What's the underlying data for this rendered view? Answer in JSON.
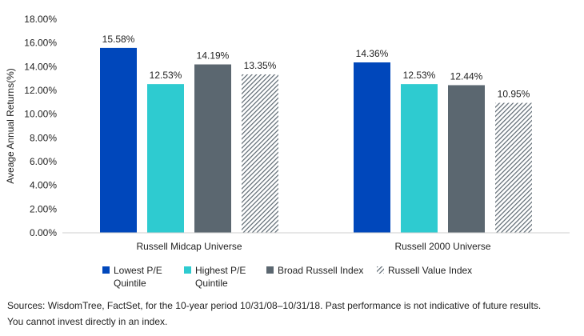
{
  "chart_data": {
    "type": "bar",
    "categories": [
      "Russell Midcap Universe",
      "Russell 2000 Universe"
    ],
    "series": [
      {
        "name": "Lowest P/E Quintile",
        "color": "#0047BB",
        "pattern": "solid",
        "values": [
          15.58,
          14.36
        ]
      },
      {
        "name": "Highest P/E Quintile",
        "color": "#2ECBD0",
        "pattern": "solid",
        "values": [
          12.53,
          12.53
        ]
      },
      {
        "name": "Broad Russell Index",
        "color": "#5B6770",
        "pattern": "solid",
        "values": [
          14.19,
          12.44
        ]
      },
      {
        "name": "Russell Value Index",
        "color": "#5B6770",
        "pattern": "hatched",
        "values": [
          13.35,
          10.95
        ]
      }
    ],
    "data_labels": [
      [
        "15.58%",
        "12.53%",
        "14.19%",
        "13.35%"
      ],
      [
        "14.36%",
        "12.53%",
        "12.44%",
        "10.95%"
      ]
    ],
    "ylabel": "Aveage Annual Returns(%)",
    "ylim": [
      0,
      18
    ],
    "yticks": [
      "0.00%",
      "2.00%",
      "4.00%",
      "6.00%",
      "8.00%",
      "10.00%",
      "12.00%",
      "14.00%",
      "16.00%",
      "18.00%"
    ],
    "grid": false,
    "legend_position": "bottom"
  },
  "legend": {
    "items": [
      {
        "line1": "Lowest P/E",
        "line2": "Quintile"
      },
      {
        "line1": "Highest P/E",
        "line2": "Quintile"
      },
      {
        "line1": "Broad Russell Index",
        "line2": ""
      },
      {
        "line1": "Russell Value Index",
        "line2": ""
      }
    ]
  },
  "source": {
    "line1": "Sources: WisdomTree, FactSet, for the 10-year period 10/31/08–10/31/18. Past performance is not indicative of future results.",
    "line2": "You cannot invest directly in an index."
  }
}
